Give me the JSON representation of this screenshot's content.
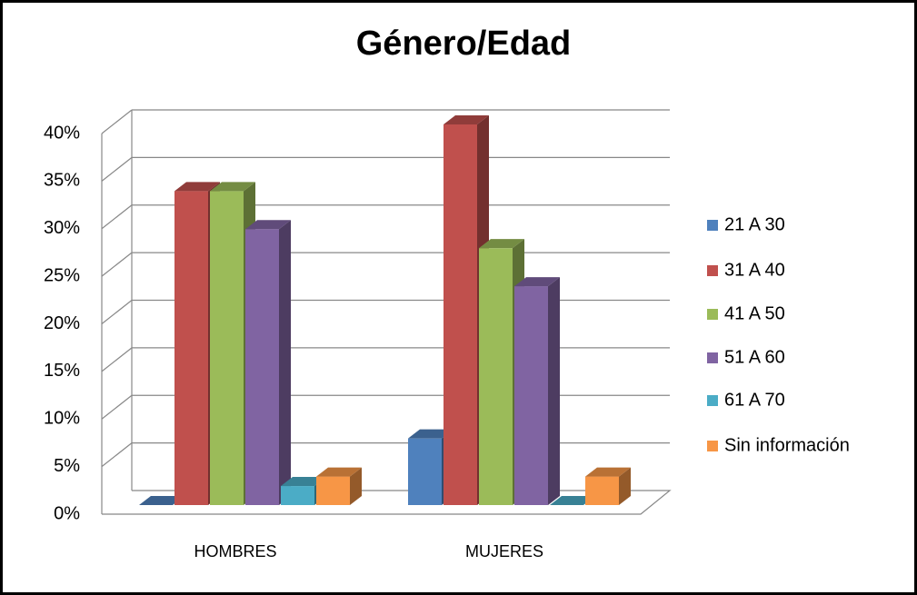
{
  "chart_data": {
    "type": "bar3d",
    "title": "Género/Edad",
    "categories": [
      "HOMBRES",
      "MUJERES"
    ],
    "series": [
      {
        "name": "21 A 30",
        "color": "#4f81bd",
        "values": [
          0,
          7
        ]
      },
      {
        "name": "31 A 40",
        "color": "#c0504d",
        "values": [
          33,
          40
        ]
      },
      {
        "name": "41 A 50",
        "color": "#9bbb59",
        "values": [
          33,
          27
        ]
      },
      {
        "name": "51 A 60",
        "color": "#8064a2",
        "values": [
          29,
          23
        ]
      },
      {
        "name": "61 A 70",
        "color": "#4bacc6",
        "values": [
          2,
          0
        ]
      },
      {
        "name": "Sin información",
        "color": "#f79646",
        "values": [
          3,
          3
        ]
      }
    ],
    "ylim": [
      0,
      40
    ],
    "yticks": [
      {
        "value": 0,
        "label": "0%"
      },
      {
        "value": 5,
        "label": "5%"
      },
      {
        "value": 10,
        "label": "10%"
      },
      {
        "value": 15,
        "label": "15%"
      },
      {
        "value": 20,
        "label": "20%"
      },
      {
        "value": 25,
        "label": "25%"
      },
      {
        "value": 30,
        "label": "30%"
      },
      {
        "value": 35,
        "label": "35%"
      },
      {
        "value": 40,
        "label": "40%"
      }
    ],
    "grid": true,
    "legend": "right"
  }
}
